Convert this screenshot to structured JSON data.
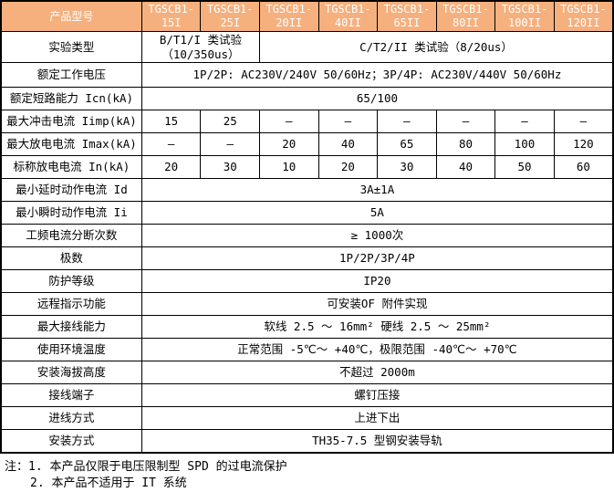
{
  "colors": {
    "header_bg": "#F5B07E",
    "header_text": "#FFFFFF",
    "border": "#000000",
    "body_text": "#000000"
  },
  "table": {
    "corner_label": "产品型号",
    "models": [
      "TGSCB1-15I",
      "TGSCB1-25I",
      "TGSCB1-20II",
      "TGSCB1-40II",
      "TGSCB1-65II",
      "TGSCB1-80II",
      "TGSCB1-100II",
      "TGSCB1-120II"
    ],
    "rows": [
      {
        "label": "实验类型",
        "cells": [
          {
            "span": 2,
            "value": "B/T1/I 类试验（10/350us）"
          },
          {
            "span": 6,
            "value": "C/T2/II 类试验（8/20us）"
          }
        ]
      },
      {
        "label": "额定工作电压",
        "cells": [
          {
            "span": 8,
            "value": "1P/2P: AC230V/240V 50/60Hz；3P/4P: AC230V/440V 50/60Hz"
          }
        ]
      },
      {
        "label": "额定短路能力 Icn(kA)",
        "cells": [
          {
            "span": 8,
            "value": "65/100"
          }
        ]
      },
      {
        "label": "最大冲击电流 Iimp(kA)",
        "cells": [
          {
            "span": 1,
            "value": "15"
          },
          {
            "span": 1,
            "value": "25"
          },
          {
            "span": 1,
            "value": "–"
          },
          {
            "span": 1,
            "value": "–"
          },
          {
            "span": 1,
            "value": "–"
          },
          {
            "span": 1,
            "value": "–"
          },
          {
            "span": 1,
            "value": "–"
          },
          {
            "span": 1,
            "value": "–"
          }
        ]
      },
      {
        "label": "最大放电电流 Imax(kA)",
        "cells": [
          {
            "span": 1,
            "value": "–"
          },
          {
            "span": 1,
            "value": "–"
          },
          {
            "span": 1,
            "value": "20"
          },
          {
            "span": 1,
            "value": "40"
          },
          {
            "span": 1,
            "value": "65"
          },
          {
            "span": 1,
            "value": "80"
          },
          {
            "span": 1,
            "value": "100"
          },
          {
            "span": 1,
            "value": "120"
          }
        ]
      },
      {
        "label": "标称放电电流 In(kA)",
        "cells": [
          {
            "span": 1,
            "value": "20"
          },
          {
            "span": 1,
            "value": "30"
          },
          {
            "span": 1,
            "value": "10"
          },
          {
            "span": 1,
            "value": "20"
          },
          {
            "span": 1,
            "value": "30"
          },
          {
            "span": 1,
            "value": "40"
          },
          {
            "span": 1,
            "value": "50"
          },
          {
            "span": 1,
            "value": "60"
          }
        ]
      },
      {
        "label": "最小延时动作电流 Id",
        "cells": [
          {
            "span": 8,
            "value": "3A±1A"
          }
        ]
      },
      {
        "label": "最小瞬时动作电流 Ii",
        "cells": [
          {
            "span": 8,
            "value": "5A"
          }
        ]
      },
      {
        "label": "工频电流分断次数",
        "cells": [
          {
            "span": 8,
            "value": "≥ 1000次"
          }
        ]
      },
      {
        "label": "极数",
        "cells": [
          {
            "span": 8,
            "value": "1P/2P/3P/4P"
          }
        ]
      },
      {
        "label": "防护等级",
        "cells": [
          {
            "span": 8,
            "value": "IP20"
          }
        ]
      },
      {
        "label": "远程指示功能",
        "cells": [
          {
            "span": 8,
            "value": "可安装OF 附件实现"
          }
        ]
      },
      {
        "label": "最大接线能力",
        "cells": [
          {
            "span": 8,
            "value": "软线 2.5 ～ 16mm² 硬线 2.5 ～ 25mm²"
          }
        ]
      },
      {
        "label": "使用环境温度",
        "cells": [
          {
            "span": 8,
            "value": "正常范围 -5℃～ +40℃，极限范围 -40℃～ +70℃"
          }
        ]
      },
      {
        "label": "安装海拔高度",
        "cells": [
          {
            "span": 8,
            "value": "不超过 2000m"
          }
        ]
      },
      {
        "label": "接线端子",
        "cells": [
          {
            "span": 8,
            "value": "螺钉压接"
          }
        ]
      },
      {
        "label": "进线方式",
        "cells": [
          {
            "span": 8,
            "value": "上进下出"
          }
        ]
      },
      {
        "label": "安装方式",
        "cells": [
          {
            "span": 8,
            "value": "TH35-7.5 型钢安装导轨"
          }
        ]
      }
    ]
  },
  "notes": {
    "line1": "注：1. 本产品仅限于电压限制型 SPD 的过电流保护",
    "line2": "2. 本产品不适用于 IT 系统"
  }
}
